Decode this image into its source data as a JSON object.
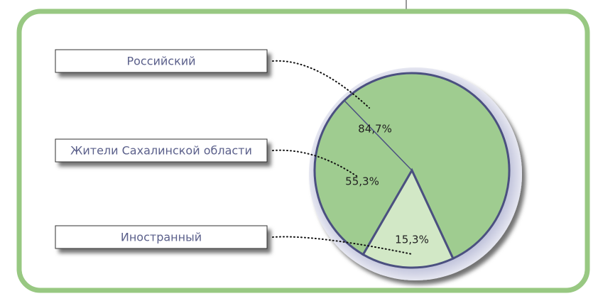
{
  "chart_data": {
    "type": "pie",
    "categories": [
      "Российский",
      "Жители Сахалинской области",
      "Иностранный"
    ],
    "values": [
      84.7,
      55.3,
      15.3
    ],
    "value_labels": [
      "84,7%",
      "55,3%",
      "15,3%"
    ],
    "colors": [
      "#9fcc90",
      "#9fcc90",
      "#d2e8c6"
    ]
  }
}
